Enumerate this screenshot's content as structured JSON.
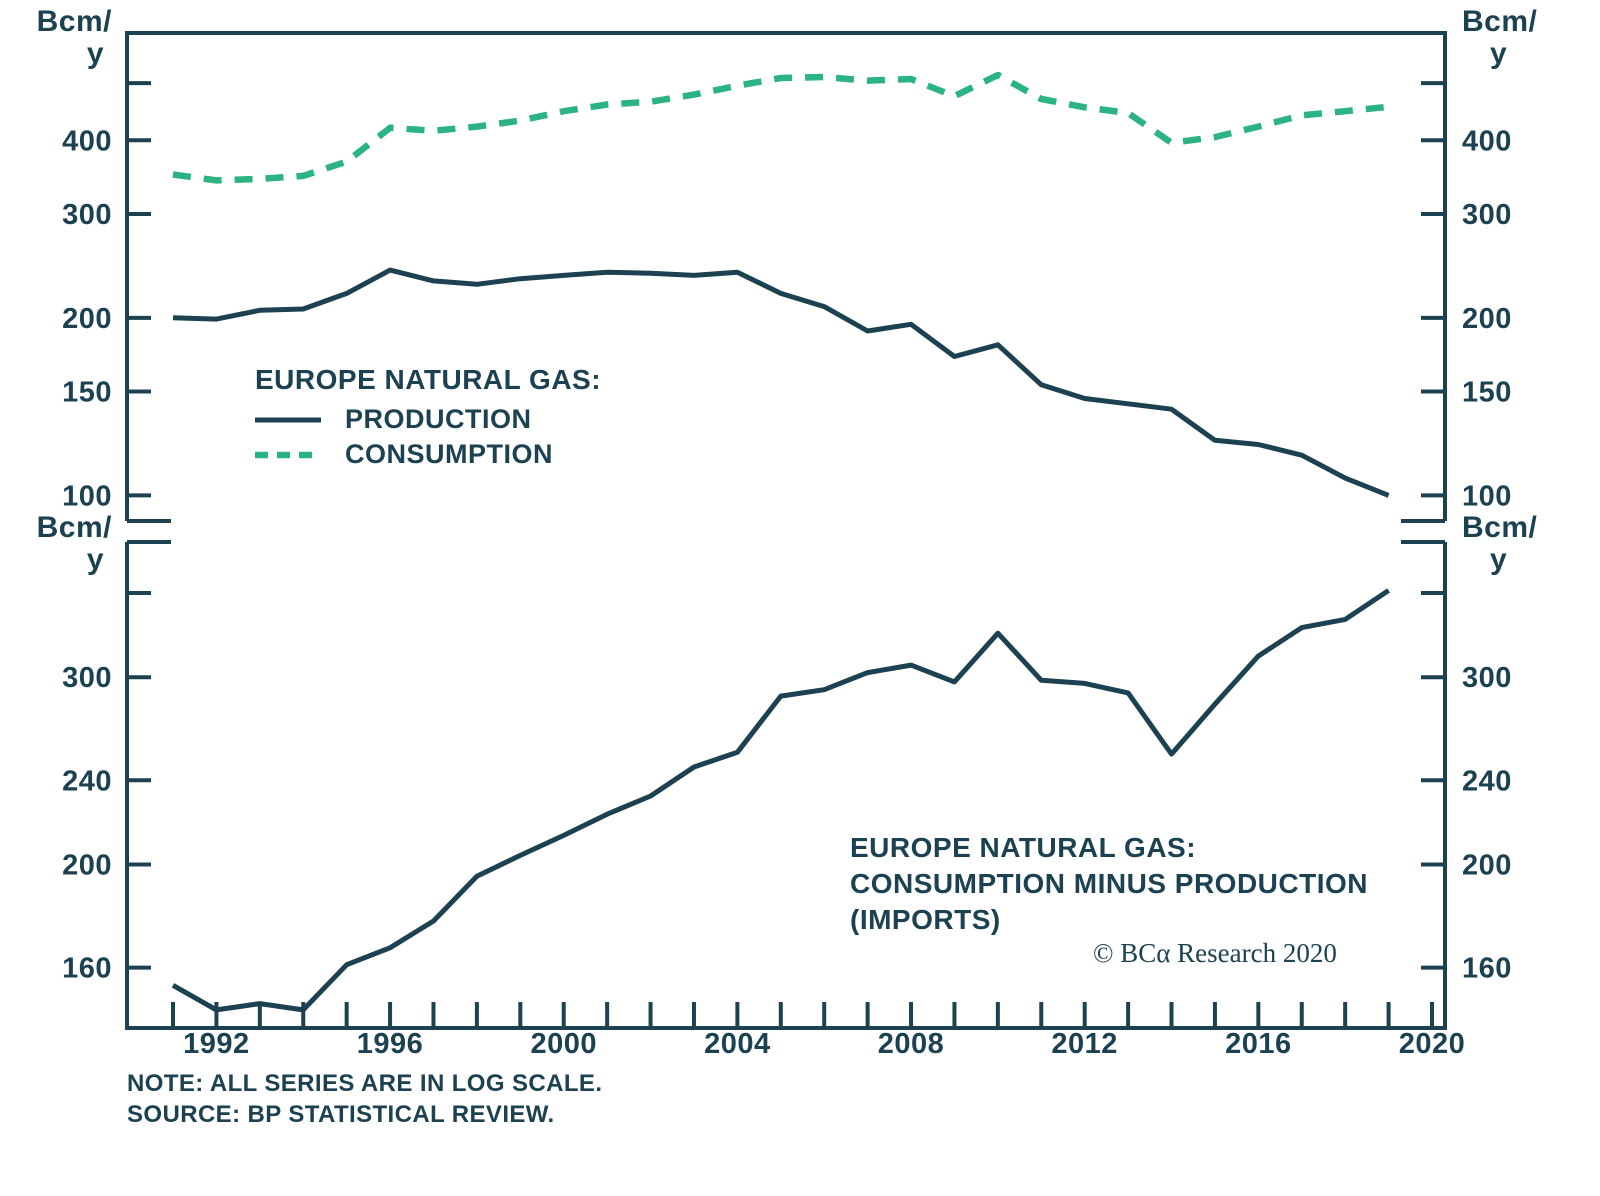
{
  "colors": {
    "ink": "#1c4150",
    "green": "#2bb381",
    "background": "#ffffff"
  },
  "axis_unit": {
    "line1": "Bcm/",
    "line2": "y"
  },
  "legend": {
    "title": "EUROPE NATURAL GAS:",
    "items": [
      {
        "label": "PRODUCTION",
        "style": "solid",
        "color": "ink"
      },
      {
        "label": "CONSUMPTION",
        "style": "dashed",
        "color": "green"
      }
    ]
  },
  "annotation": {
    "line1": "EUROPE NATURAL GAS:",
    "line2": "CONSUMPTION MINUS PRODUCTION",
    "line3": "(IMPORTS)"
  },
  "copyright": {
    "text": "© BCα Research 2020"
  },
  "notes": {
    "note": "NOTE: ALL SERIES ARE IN LOG SCALE.",
    "source": "SOURCE: BP STATISTICAL REVIEW."
  },
  "x_axis": {
    "tick_year_start": 1991,
    "tick_year_end": 2020,
    "label_years": [
      1992,
      1996,
      2000,
      2004,
      2008,
      2012,
      2016,
      2020
    ]
  },
  "chart_data": [
    {
      "type": "line",
      "panel": "top",
      "scale": "log",
      "unit": "Bcm/y",
      "ylim": [
        90.5,
        608
      ],
      "y_ticks": [
        {
          "v": 500,
          "label": ""
        },
        {
          "v": 400,
          "label": "400"
        },
        {
          "v": 300,
          "label": "300"
        },
        {
          "v": 200,
          "label": "200"
        },
        {
          "v": 150,
          "label": "150"
        },
        {
          "v": 100,
          "label": "100"
        }
      ],
      "x": [
        1991,
        1992,
        1993,
        1994,
        1995,
        1996,
        1997,
        1998,
        1999,
        2000,
        2001,
        2002,
        2003,
        2004,
        2005,
        2006,
        2007,
        2008,
        2009,
        2010,
        2011,
        2012,
        2013,
        2014,
        2015,
        2016,
        2017,
        2018,
        2019
      ],
      "series": [
        {
          "id": "production-line",
          "name": "PRODUCTION",
          "color": "ink",
          "style": "solid",
          "values": [
            200,
            199,
            206,
            207,
            220,
            241,
            231,
            228,
            233,
            236,
            239,
            238,
            236,
            239,
            220,
            209,
            190,
            195,
            172,
            180,
            154,
            146,
            143,
            140,
            124,
            122,
            117,
            107,
            100
          ]
        },
        {
          "id": "consumption-line",
          "name": "CONSUMPTION",
          "color": "green",
          "style": "dashed",
          "values": [
            350,
            342,
            344,
            348,
            368,
            420,
            415,
            422,
            432,
            448,
            460,
            465,
            478,
            495,
            510,
            512,
            505,
            508,
            475,
            516,
            470,
            455,
            445,
            396,
            405,
            422,
            441,
            448,
            456
          ]
        }
      ]
    },
    {
      "type": "line",
      "panel": "bottom",
      "scale": "log",
      "unit": "Bcm/y",
      "ylim": [
        140.4,
        402
      ],
      "y_ticks": [
        {
          "v": 360,
          "label": ""
        },
        {
          "v": 300,
          "label": "300"
        },
        {
          "v": 240,
          "label": "240"
        },
        {
          "v": 200,
          "label": "200"
        },
        {
          "v": 160,
          "label": "160"
        }
      ],
      "x": [
        1991,
        1992,
        1993,
        1994,
        1995,
        1996,
        1997,
        1998,
        1999,
        2000,
        2001,
        2002,
        2003,
        2004,
        2005,
        2006,
        2007,
        2008,
        2009,
        2010,
        2011,
        2012,
        2013,
        2014,
        2015,
        2016,
        2017,
        2018,
        2019
      ],
      "series": [
        {
          "id": "imports-line",
          "name": "CONSUMPTION MINUS PRODUCTION (IMPORTS)",
          "color": "ink",
          "style": "solid",
          "values": [
            154,
            146,
            148,
            146,
            161,
            167,
            177,
            195,
            204,
            213,
            223,
            232,
            247,
            255,
            288,
            292,
            303,
            308,
            297,
            330,
            298,
            296,
            290,
            254,
            283,
            314,
            334,
            340,
            362
          ]
        }
      ]
    }
  ]
}
